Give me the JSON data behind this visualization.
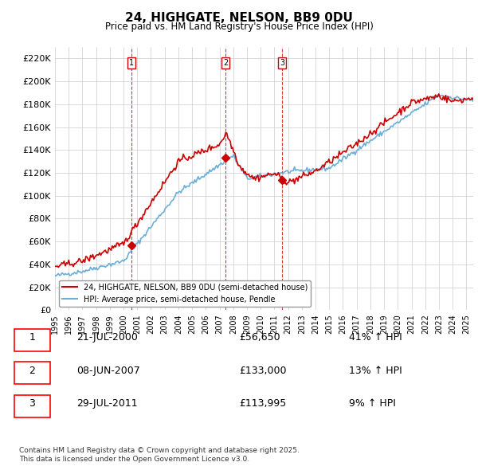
{
  "title": "24, HIGHGATE, NELSON, BB9 0DU",
  "subtitle": "Price paid vs. HM Land Registry's House Price Index (HPI)",
  "ylabel": "",
  "ylim": [
    0,
    230000
  ],
  "yticks": [
    0,
    20000,
    40000,
    60000,
    80000,
    100000,
    120000,
    140000,
    160000,
    180000,
    200000,
    220000
  ],
  "ytick_labels": [
    "£0",
    "£20K",
    "£40K",
    "£60K",
    "£80K",
    "£100K",
    "£120K",
    "£140K",
    "£160K",
    "£180K",
    "£200K",
    "£220K"
  ],
  "hpi_color": "#6baed6",
  "price_color": "#cc0000",
  "sale_marker_color": "#8B0000",
  "vline_color": "#cc0000",
  "grid_color": "#cccccc",
  "bg_color": "#ffffff",
  "legend_label_price": "24, HIGHGATE, NELSON, BB9 0DU (semi-detached house)",
  "legend_label_hpi": "HPI: Average price, semi-detached house, Pendle",
  "sale1_date": 2000.55,
  "sale1_price": 56650,
  "sale1_label": "1",
  "sale2_date": 2007.44,
  "sale2_price": 133000,
  "sale2_label": "2",
  "sale3_date": 2011.58,
  "sale3_price": 113995,
  "sale3_label": "3",
  "table_rows": [
    {
      "num": "1",
      "date": "21-JUL-2000",
      "price": "£56,650",
      "change": "41% ↑ HPI"
    },
    {
      "num": "2",
      "date": "08-JUN-2007",
      "price": "£133,000",
      "change": "13% ↑ HPI"
    },
    {
      "num": "3",
      "date": "29-JUL-2011",
      "price": "£113,995",
      "change": "9% ↑ HPI"
    }
  ],
  "footer": "Contains HM Land Registry data © Crown copyright and database right 2025.\nThis data is licensed under the Open Government Licence v3.0.",
  "xmin": 1995,
  "xmax": 2025.5
}
